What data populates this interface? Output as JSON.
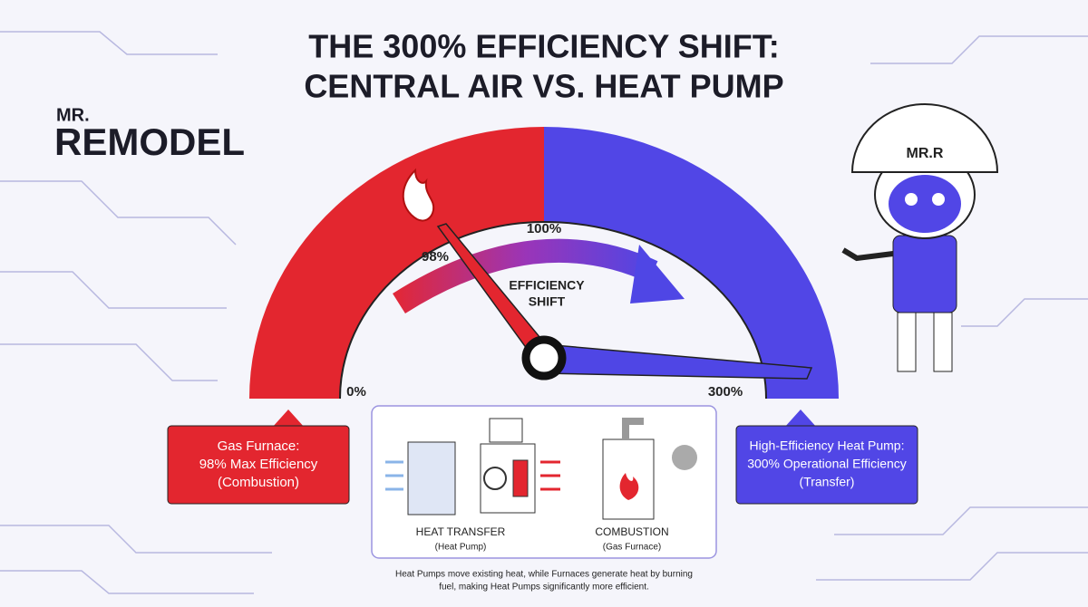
{
  "title": [
    "THE 300% EFFICIENCY SHIFT:",
    "CENTRAL AIR VS. HEAT PUMP"
  ],
  "logo": {
    "line1": "MR.",
    "line2": "REMODEL"
  },
  "gauge": {
    "labels": [
      "0%",
      "98%",
      "100%",
      "300%"
    ],
    "center_label": [
      "EFFICIENCY",
      "SHIFT"
    ]
  },
  "callouts": [
    {
      "lines": [
        "Gas Furnace:",
        "98% Max Efficiency",
        "(Combustion)"
      ]
    },
    {
      "lines": [
        "High-Efficiency Heat Pump:",
        "300% Operational Efficiency",
        "(Transfer)"
      ]
    }
  ],
  "diagram": {
    "items": [
      {
        "title": "HEAT TRANSFER",
        "subtitle": "(Heat Pump)"
      },
      {
        "title": "COMBUSTION",
        "subtitle": "(Gas Furnace)"
      }
    ]
  },
  "caption": [
    "Heat Pumps move existing heat, while Furnaces generate heat by burning",
    "fuel, making Heat Pumps significantly more efficient."
  ],
  "mascot": {
    "helmet": "MR.R"
  }
}
